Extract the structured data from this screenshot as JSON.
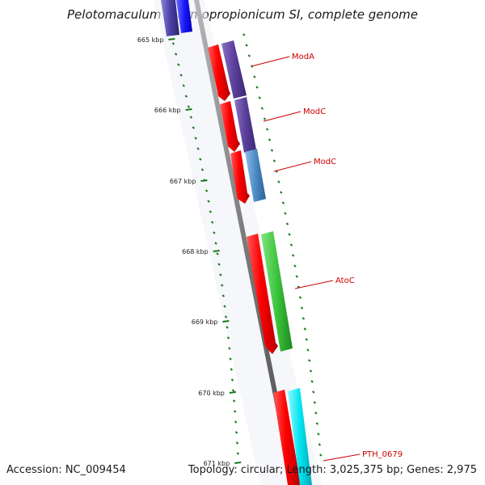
{
  "title": "Pelotomaculum thermopropionicum SI, complete genome",
  "accession_text": "Accession: NC_009454",
  "summary_text": "Topology: circular; Length: 3,025,375 bp; Genes: 2,975",
  "colors": {
    "backbone": "#7a7a7a",
    "cds_forward": "#ff0000",
    "tick": "#1a7a1a",
    "label": "#cc0000"
  },
  "scale_ticks": [
    {
      "label": "665 kbp"
    },
    {
      "label": "666 kbp"
    },
    {
      "label": "667 kbp"
    },
    {
      "label": "668 kbp"
    },
    {
      "label": "669 kbp"
    },
    {
      "label": "670 kbp"
    },
    {
      "label": "671 kbp"
    }
  ],
  "genes": [
    {
      "name": "ModA",
      "track_color": "#5b3f9c"
    },
    {
      "name": "ModC",
      "track_color": "#5b3f9c"
    },
    {
      "name": "ModC",
      "track_color": "#4d8bc7"
    },
    {
      "name": "AtoC",
      "track_color": "#3cc43c"
    },
    {
      "name": "PTH_0679",
      "track_color": "#00e5f0"
    }
  ]
}
